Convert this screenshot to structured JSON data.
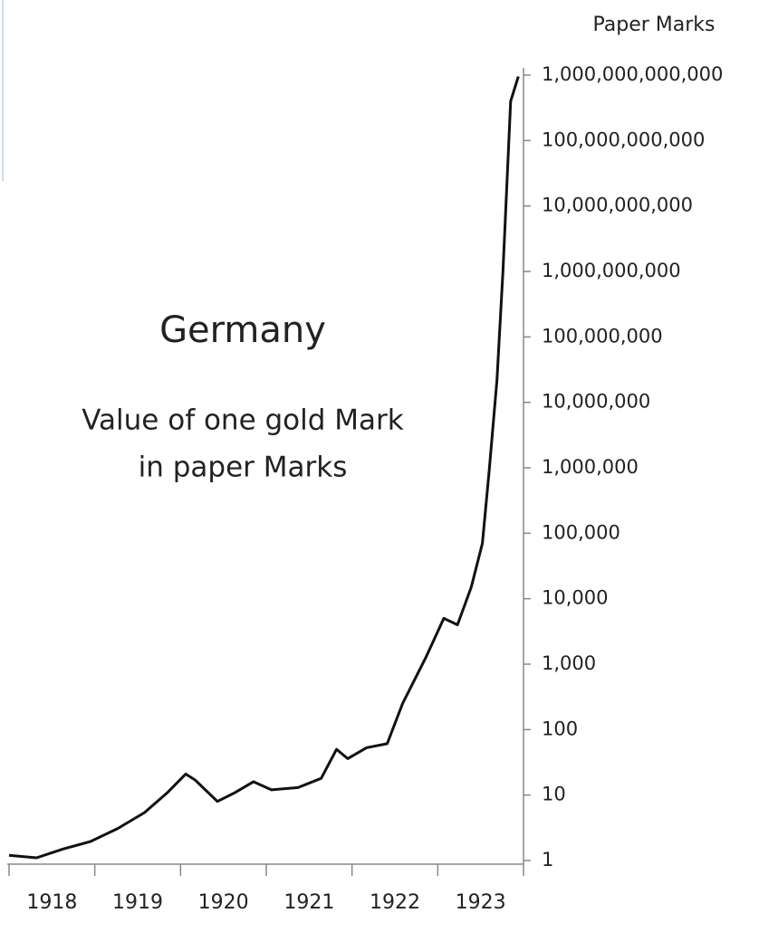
{
  "chart_data": {
    "type": "line",
    "title": "Germany",
    "subtitle": [
      "Value of one gold Mark",
      "in paper Marks"
    ],
    "ylabel": "Paper Marks",
    "yscale": "log",
    "color": "#111111",
    "xlim": [
      1918,
      1924
    ],
    "xticks": [
      1918,
      1919,
      1920,
      1921,
      1922,
      1923
    ],
    "ylim": [
      1,
      1000000000000
    ],
    "yticks": [
      1,
      10,
      100,
      {
        "value": 1000,
        "label": "1,000"
      },
      {
        "value": 10000,
        "label": "10,000"
      },
      {
        "value": 100000,
        "label": "100,000"
      },
      {
        "value": 1000000,
        "label": "1,000,000"
      },
      {
        "value": 10000000,
        "label": "10,000,000"
      },
      {
        "value": 100000000,
        "label": "100,000,000"
      },
      {
        "value": 1000000000,
        "label": "1,000,000,000"
      },
      {
        "value": 10000000000,
        "label": "10,000,000,000"
      },
      {
        "value": 100000000000,
        "label": "100,000,000,000"
      },
      {
        "value": 1000000000000,
        "label": "1,000,000,000,000"
      }
    ],
    "x": [
      1918.0,
      1918.32,
      1918.63,
      1918.95,
      1919.27,
      1919.58,
      1919.85,
      1920.06,
      1920.17,
      1920.43,
      1920.64,
      1920.85,
      1921.06,
      1921.37,
      1921.64,
      1921.82,
      1921.95,
      1922.17,
      1922.41,
      1922.59,
      1922.86,
      1923.07,
      1923.23,
      1923.39,
      1923.52,
      1923.6,
      1923.69,
      1923.76,
      1923.85,
      1923.94
    ],
    "values": [
      1.2,
      1.1,
      1.5,
      1.95,
      3.1,
      5.4,
      11,
      21,
      17,
      8,
      11,
      16,
      12,
      13,
      18,
      50,
      36,
      53,
      61,
      250,
      1260,
      5000,
      4000,
      15000,
      70000,
      900000,
      22000000,
      1000000000,
      400000000000,
      950000000000
    ]
  }
}
